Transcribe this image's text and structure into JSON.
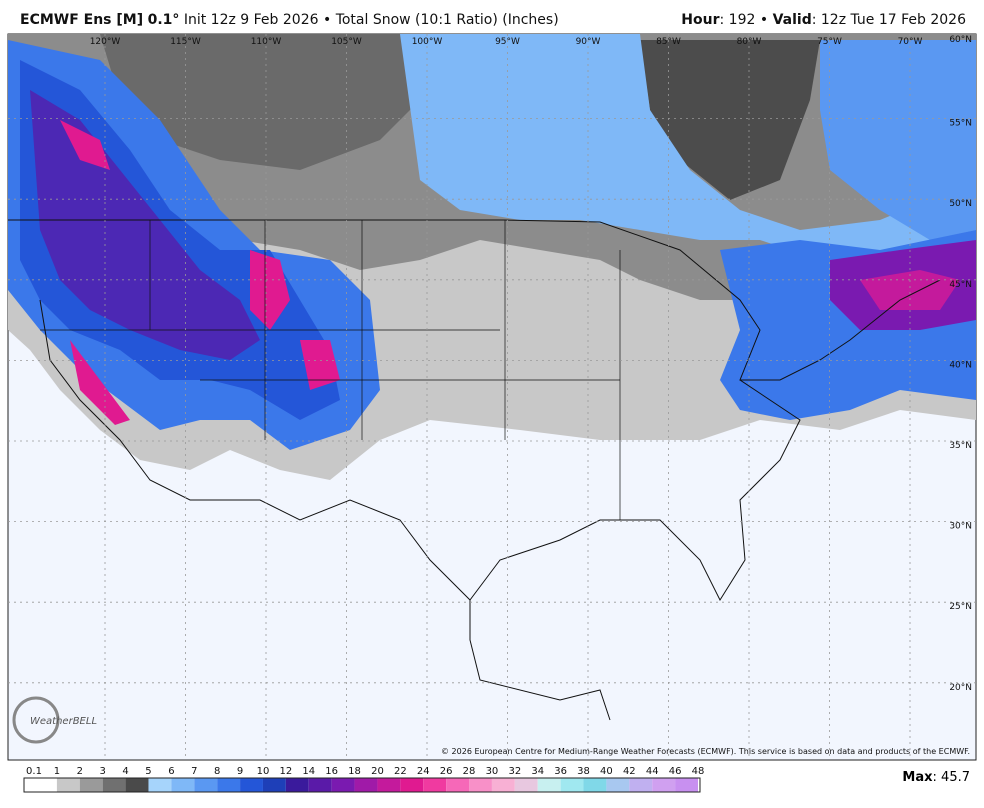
{
  "header": {
    "model": "ECMWF Ens [M]",
    "resolution": "0.1°",
    "init": "Init 12z 9 Feb 2026",
    "separator": "•",
    "product": "Total Snow (10:1 Ratio) (Inches)",
    "hour_label": "Hour",
    "hour": "192",
    "valid_label": "Valid",
    "valid": "12z Tue 17 Feb 2026"
  },
  "map": {
    "lon_labels": [
      "120°W",
      "115°W",
      "110°W",
      "105°W",
      "100°W",
      "95°W",
      "90°W",
      "85°W",
      "80°W",
      "75°W",
      "70°W"
    ],
    "lat_labels": [
      "60°N",
      "55°N",
      "50°N",
      "45°N",
      "40°N",
      "35°N",
      "30°N",
      "25°N",
      "20°N"
    ],
    "credit": "© 2026 European Centre for Medium-Range Weather Forecasts (ECMWF). This service is based on data and products of the ECMWF.",
    "logo": "WeatherBELL"
  },
  "legend": {
    "levels": [
      "0.1",
      "1",
      "2",
      "3",
      "4",
      "5",
      "6",
      "7",
      "8",
      "9",
      "10",
      "12",
      "14",
      "16",
      "18",
      "20",
      "22",
      "24",
      "26",
      "28",
      "30",
      "32",
      "34",
      "36",
      "38",
      "40",
      "42",
      "44",
      "46",
      "48"
    ],
    "colors": [
      "#ffffff",
      "#c8c8c8",
      "#9a9a9a",
      "#707070",
      "#4a4a4a",
      "#a6d4fb",
      "#7fb8f7",
      "#5a98f2",
      "#3b78ea",
      "#2456d8",
      "#1e3fb8",
      "#3a1a9c",
      "#5a1aa8",
      "#7a1ab0",
      "#a01aa8",
      "#c41a9c",
      "#e01a90",
      "#f03aa0",
      "#f668b8",
      "#f890c8",
      "#f8b0d4",
      "#e8c8e0",
      "#c8f0f0",
      "#a0e8f0",
      "#80d8e8",
      "#a8c8f0",
      "#c0b0f0",
      "#d0a0f0",
      "#c890f0"
    ],
    "max_label": "Max",
    "max": "45.7"
  }
}
